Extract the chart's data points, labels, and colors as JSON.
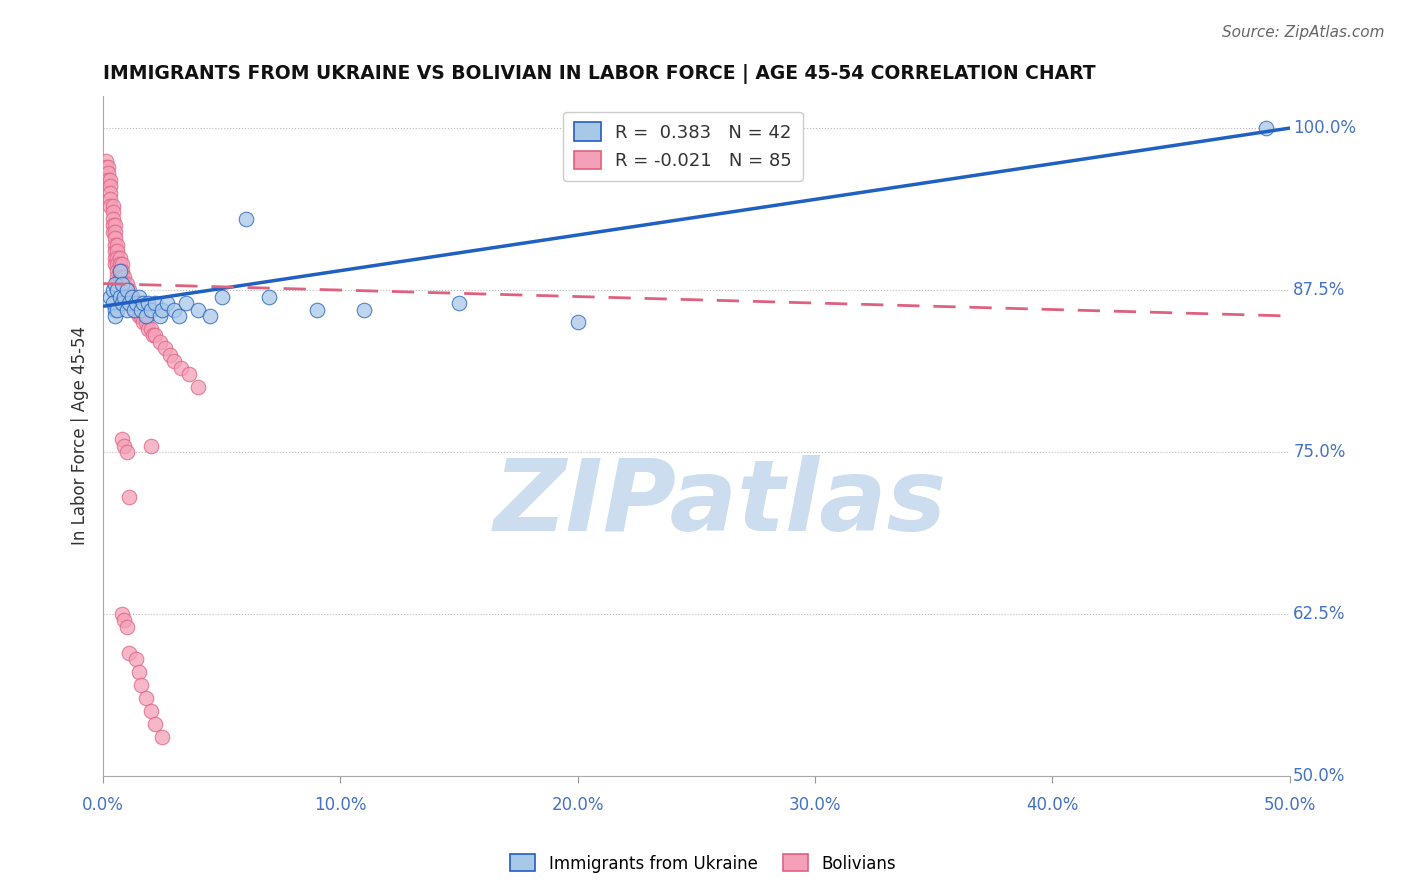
{
  "title": "IMMIGRANTS FROM UKRAINE VS BOLIVIAN IN LABOR FORCE | AGE 45-54 CORRELATION CHART",
  "source_text": "Source: ZipAtlas.com",
  "ylabel": "In Labor Force | Age 45-54",
  "xlim": [
    0.0,
    0.5
  ],
  "ylim": [
    0.5,
    1.025
  ],
  "ytick_labels": [
    "50.0%",
    "62.5%",
    "75.0%",
    "87.5%",
    "100.0%"
  ],
  "ytick_values": [
    0.5,
    0.625,
    0.75,
    0.875,
    1.0
  ],
  "xtick_labels": [
    "0.0%",
    "10.0%",
    "20.0%",
    "30.0%",
    "40.0%",
    "50.0%"
  ],
  "xtick_values": [
    0.0,
    0.1,
    0.2,
    0.3,
    0.4,
    0.5
  ],
  "ukraine_R": 0.383,
  "ukraine_N": 42,
  "bolivia_R": -0.021,
  "bolivia_N": 85,
  "ukraine_color": "#a8c8e8",
  "bolivia_color": "#f4a0b8",
  "ukraine_line_color": "#2060c0",
  "bolivia_line_color": "#e06080",
  "legend_ukraine_label": "Immigrants from Ukraine",
  "legend_bolivia_label": "Bolivians",
  "ukraine_x": [
    0.003,
    0.004,
    0.004,
    0.005,
    0.005,
    0.005,
    0.006,
    0.006,
    0.007,
    0.007,
    0.008,
    0.008,
    0.009,
    0.01,
    0.01,
    0.011,
    0.012,
    0.013,
    0.014,
    0.015,
    0.016,
    0.017,
    0.018,
    0.019,
    0.02,
    0.022,
    0.024,
    0.025,
    0.027,
    0.03,
    0.032,
    0.035,
    0.04,
    0.045,
    0.05,
    0.06,
    0.07,
    0.09,
    0.11,
    0.15,
    0.2,
    0.49
  ],
  "ukraine_y": [
    0.87,
    0.875,
    0.865,
    0.88,
    0.86,
    0.855,
    0.875,
    0.86,
    0.89,
    0.87,
    0.88,
    0.865,
    0.87,
    0.875,
    0.86,
    0.865,
    0.87,
    0.86,
    0.865,
    0.87,
    0.86,
    0.865,
    0.855,
    0.865,
    0.86,
    0.865,
    0.855,
    0.86,
    0.865,
    0.86,
    0.855,
    0.865,
    0.86,
    0.855,
    0.87,
    0.93,
    0.87,
    0.86,
    0.86,
    0.865,
    0.85,
    1.0
  ],
  "bolivia_x": [
    0.001,
    0.001,
    0.002,
    0.002,
    0.002,
    0.003,
    0.003,
    0.003,
    0.003,
    0.003,
    0.004,
    0.004,
    0.004,
    0.004,
    0.004,
    0.005,
    0.005,
    0.005,
    0.005,
    0.005,
    0.005,
    0.005,
    0.006,
    0.006,
    0.006,
    0.006,
    0.006,
    0.006,
    0.006,
    0.007,
    0.007,
    0.007,
    0.007,
    0.007,
    0.008,
    0.008,
    0.008,
    0.008,
    0.009,
    0.009,
    0.009,
    0.009,
    0.01,
    0.01,
    0.01,
    0.01,
    0.011,
    0.011,
    0.012,
    0.012,
    0.013,
    0.013,
    0.014,
    0.015,
    0.015,
    0.016,
    0.017,
    0.018,
    0.019,
    0.02,
    0.021,
    0.022,
    0.024,
    0.026,
    0.028,
    0.03,
    0.033,
    0.036,
    0.04,
    0.02,
    0.008,
    0.009,
    0.01,
    0.011,
    0.008,
    0.009,
    0.01,
    0.011,
    0.014,
    0.015,
    0.016,
    0.018,
    0.02,
    0.022,
    0.025
  ],
  "bolivia_y": [
    0.975,
    0.97,
    0.97,
    0.965,
    0.96,
    0.96,
    0.955,
    0.95,
    0.945,
    0.94,
    0.94,
    0.935,
    0.93,
    0.925,
    0.92,
    0.925,
    0.92,
    0.915,
    0.91,
    0.905,
    0.9,
    0.895,
    0.91,
    0.905,
    0.9,
    0.895,
    0.89,
    0.885,
    0.88,
    0.9,
    0.895,
    0.89,
    0.885,
    0.88,
    0.895,
    0.89,
    0.885,
    0.88,
    0.885,
    0.88,
    0.875,
    0.87,
    0.88,
    0.875,
    0.87,
    0.865,
    0.875,
    0.87,
    0.87,
    0.865,
    0.865,
    0.86,
    0.86,
    0.86,
    0.855,
    0.855,
    0.85,
    0.85,
    0.845,
    0.845,
    0.84,
    0.84,
    0.835,
    0.83,
    0.825,
    0.82,
    0.815,
    0.81,
    0.8,
    0.755,
    0.76,
    0.755,
    0.75,
    0.715,
    0.625,
    0.62,
    0.615,
    0.595,
    0.59,
    0.58,
    0.57,
    0.56,
    0.55,
    0.54,
    0.53
  ],
  "ukraine_trendline": [
    0.0,
    0.5,
    0.8625,
    1.0
  ],
  "bolivia_trendline": [
    0.0,
    0.5,
    0.88,
    0.855
  ],
  "background_color": "#ffffff",
  "grid_color": "#bbbbbb",
  "watermark_text": "ZIPatlas",
  "watermark_color": "#ccddf0"
}
